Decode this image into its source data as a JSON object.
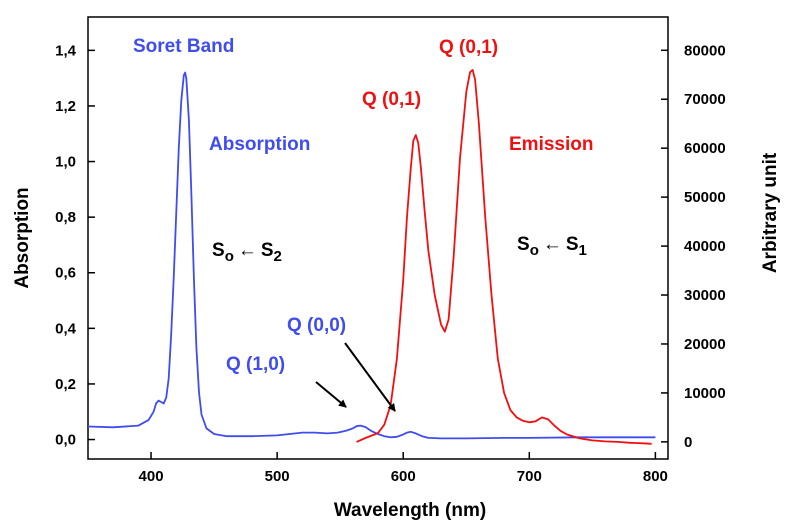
{
  "chart_data": {
    "type": "line",
    "xlabel": "Wavelength (nm)",
    "ylabel_left": "Absorption",
    "ylabel_right": "Arbitrary unit",
    "xlim": [
      350,
      810
    ],
    "ylim_left": [
      -0.07,
      1.52
    ],
    "ylim_right": [
      -3500,
      86800
    ],
    "x_ticks": [
      {
        "value": 400,
        "label": "400"
      },
      {
        "value": 500,
        "label": "500"
      },
      {
        "value": 600,
        "label": "600"
      },
      {
        "value": 700,
        "label": "700"
      },
      {
        "value": 800,
        "label": "800"
      }
    ],
    "y_left_ticks": [
      {
        "value": 0.0,
        "label": "0,0"
      },
      {
        "value": 0.2,
        "label": "0,2"
      },
      {
        "value": 0.4,
        "label": "0,4"
      },
      {
        "value": 0.6,
        "label": "0,6"
      },
      {
        "value": 0.8,
        "label": "0,8"
      },
      {
        "value": 1.0,
        "label": "1,0"
      },
      {
        "value": 1.2,
        "label": "1,2"
      },
      {
        "value": 1.4,
        "label": "1,4"
      }
    ],
    "y_right_ticks": [
      {
        "value": 0,
        "label": "0"
      },
      {
        "value": 10000,
        "label": "10000"
      },
      {
        "value": 20000,
        "label": "20000"
      },
      {
        "value": 30000,
        "label": "30000"
      },
      {
        "value": 40000,
        "label": "40000"
      },
      {
        "value": 50000,
        "label": "50000"
      },
      {
        "value": 60000,
        "label": "60000"
      },
      {
        "value": 70000,
        "label": "70000"
      },
      {
        "value": 80000,
        "label": "80000"
      }
    ],
    "grid": false,
    "series": [
      {
        "name": "Absorption",
        "axis": "left",
        "color": "#3f4cf0",
        "x": [
          350,
          370,
          390,
          398,
          402,
          404,
          406,
          408,
          410,
          412,
          414,
          416,
          418,
          420,
          422,
          424,
          426,
          427,
          428,
          430,
          432,
          434,
          436,
          438,
          440,
          444,
          450,
          460,
          480,
          500,
          510,
          520,
          530,
          540,
          548,
          555,
          560,
          563,
          566,
          570,
          575,
          580,
          585,
          590,
          595,
          600,
          603,
          606,
          610,
          615,
          620,
          630,
          650,
          680,
          700,
          740,
          800
        ],
        "y": [
          0.047,
          0.044,
          0.05,
          0.07,
          0.1,
          0.13,
          0.14,
          0.135,
          0.13,
          0.15,
          0.22,
          0.38,
          0.58,
          0.82,
          1.05,
          1.22,
          1.31,
          1.32,
          1.3,
          1.15,
          0.88,
          0.58,
          0.33,
          0.17,
          0.09,
          0.04,
          0.02,
          0.012,
          0.012,
          0.015,
          0.02,
          0.025,
          0.025,
          0.022,
          0.025,
          0.032,
          0.04,
          0.048,
          0.05,
          0.045,
          0.03,
          0.02,
          0.012,
          0.008,
          0.01,
          0.018,
          0.025,
          0.028,
          0.022,
          0.012,
          0.006,
          0.004,
          0.004,
          0.006,
          0.006,
          0.008,
          0.008
        ]
      },
      {
        "name": "Emission",
        "axis": "right",
        "color": "#f01010",
        "x": [
          563,
          570,
          580,
          585,
          590,
          595,
          600,
          603,
          606,
          608,
          610,
          612,
          614,
          617,
          620,
          625,
          630,
          633,
          636,
          640,
          645,
          650,
          653,
          655,
          657,
          660,
          665,
          670,
          675,
          680,
          685,
          690,
          695,
          700,
          705,
          710,
          715,
          720,
          725,
          730,
          740,
          750,
          760,
          770,
          780,
          790,
          797
        ],
        "y": [
          0,
          800,
          1800,
          3500,
          7500,
          17000,
          33000,
          46000,
          56000,
          61500,
          62700,
          61000,
          56000,
          47000,
          39000,
          30000,
          24000,
          22500,
          25000,
          38000,
          58000,
          71500,
          75500,
          76000,
          74000,
          65000,
          46000,
          30000,
          17000,
          10000,
          6500,
          5000,
          4300,
          4000,
          4200,
          5000,
          4600,
          3300,
          2200,
          1500,
          700,
          300,
          100,
          0,
          -200,
          -300,
          -400
        ]
      }
    ],
    "annotations": [
      {
        "text": "Soret Band",
        "color": "#3f4cf0"
      },
      {
        "text": "Absorption",
        "color": "#3f4cf0"
      },
      {
        "text": "Q (0,1)",
        "color": "#ee1111"
      },
      {
        "text": "Q (0,1)",
        "color": "#ee1111"
      },
      {
        "text": "Emission",
        "color": "#ee1111"
      },
      {
        "text": "Q (0,0)",
        "color": "#3f4cf0"
      },
      {
        "text": "Q (1,0)",
        "color": "#3f4cf0"
      }
    ],
    "transitions": [
      {
        "lower": "S",
        "lower_sub": "o",
        "arrow": "←",
        "upper": "S",
        "upper_sub": "2"
      },
      {
        "lower": "S",
        "lower_sub": "o",
        "arrow": "←",
        "upper": "S",
        "upper_sub": "1"
      }
    ]
  }
}
